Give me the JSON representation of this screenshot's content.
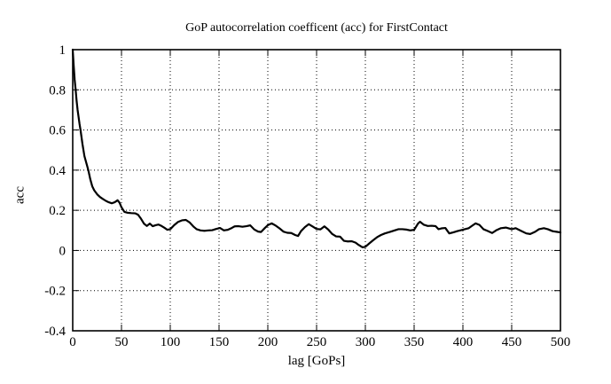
{
  "chart_data": {
    "type": "line",
    "title": "GoP autocorrelation coefficent (acc) for FirstContact",
    "xlabel": "lag [GoPs]",
    "ylabel": "acc",
    "xlim": [
      0,
      500
    ],
    "ylim": [
      -0.4,
      1
    ],
    "xticks": [
      0,
      50,
      100,
      150,
      200,
      250,
      300,
      350,
      400,
      450,
      500
    ],
    "yticks": [
      -0.4,
      -0.2,
      0,
      0.2,
      0.4,
      0.6,
      0.8,
      1
    ],
    "grid": true,
    "legend": "none",
    "line_color": "#000000",
    "background": "#ffffff",
    "series": [
      {
        "name": "acc",
        "x": [
          0,
          1,
          2,
          3,
          4,
          5,
          6,
          7,
          8,
          10,
          12,
          14,
          16,
          18,
          20,
          22,
          25,
          28,
          31,
          34,
          37,
          40,
          43,
          46,
          48,
          50,
          53,
          56,
          60,
          64,
          67,
          70,
          73,
          76,
          79,
          82,
          85,
          88,
          91,
          94,
          97,
          100,
          104,
          108,
          112,
          116,
          120,
          124,
          127,
          131,
          135,
          139,
          143,
          147,
          151,
          155,
          159,
          163,
          166,
          170,
          174,
          178,
          182,
          186,
          190,
          193,
          197,
          200,
          204,
          208,
          212,
          216,
          220,
          224,
          228,
          231,
          234,
          238,
          242,
          246,
          250,
          254,
          258,
          262,
          266,
          270,
          274,
          278,
          282,
          286,
          290,
          293,
          297,
          300,
          304,
          308,
          312,
          316,
          320,
          325,
          330,
          334,
          338,
          342,
          346,
          350,
          354,
          356,
          360,
          364,
          368,
          372,
          375,
          378,
          382,
          386,
          390,
          394,
          398,
          402,
          406,
          410,
          413,
          417,
          421,
          425,
          430,
          434,
          439,
          444,
          450,
          454,
          459,
          465,
          469,
          474,
          478,
          483,
          487,
          492,
          496,
          500
        ],
        "y": [
          1.0,
          0.92,
          0.85,
          0.8,
          0.745,
          0.7,
          0.665,
          0.63,
          0.6,
          0.53,
          0.47,
          0.435,
          0.4,
          0.355,
          0.32,
          0.3,
          0.28,
          0.266,
          0.256,
          0.247,
          0.24,
          0.235,
          0.24,
          0.25,
          0.238,
          0.215,
          0.192,
          0.188,
          0.186,
          0.185,
          0.178,
          0.158,
          0.134,
          0.122,
          0.134,
          0.121,
          0.126,
          0.129,
          0.122,
          0.113,
          0.103,
          0.106,
          0.126,
          0.142,
          0.15,
          0.152,
          0.139,
          0.118,
          0.106,
          0.1,
          0.098,
          0.1,
          0.101,
          0.107,
          0.112,
          0.1,
          0.103,
          0.112,
          0.12,
          0.121,
          0.118,
          0.121,
          0.125,
          0.105,
          0.094,
          0.092,
          0.112,
          0.126,
          0.135,
          0.124,
          0.11,
          0.094,
          0.088,
          0.087,
          0.077,
          0.072,
          0.096,
          0.116,
          0.131,
          0.119,
          0.107,
          0.105,
          0.12,
          0.104,
          0.082,
          0.07,
          0.069,
          0.048,
          0.045,
          0.046,
          0.039,
          0.028,
          0.016,
          0.018,
          0.035,
          0.051,
          0.066,
          0.077,
          0.085,
          0.092,
          0.1,
          0.106,
          0.106,
          0.104,
          0.1,
          0.103,
          0.134,
          0.143,
          0.128,
          0.122,
          0.123,
          0.121,
          0.106,
          0.11,
          0.112,
          0.085,
          0.09,
          0.096,
          0.101,
          0.106,
          0.111,
          0.125,
          0.135,
          0.127,
          0.106,
          0.098,
          0.087,
          0.1,
          0.111,
          0.114,
          0.106,
          0.111,
          0.099,
          0.085,
          0.082,
          0.093,
          0.106,
          0.111,
          0.106,
          0.096,
          0.093,
          0.09
        ]
      }
    ]
  }
}
